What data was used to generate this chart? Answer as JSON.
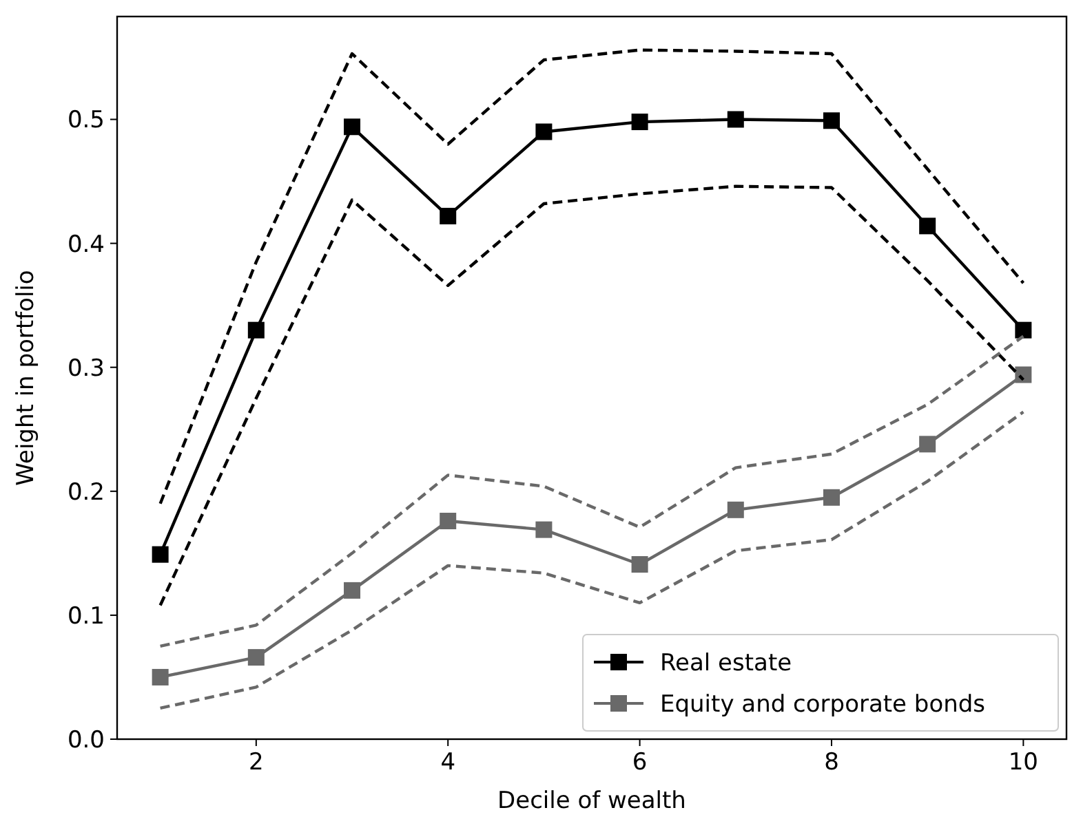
{
  "chart_data": {
    "type": "line",
    "xlabel": "Decile of wealth",
    "ylabel": "Weight in portfolio",
    "x": [
      1,
      2,
      3,
      4,
      5,
      6,
      7,
      8,
      9,
      10
    ],
    "series": [
      {
        "name": "Real estate",
        "color": "#000000",
        "values": [
          0.149,
          0.33,
          0.494,
          0.422,
          0.49,
          0.498,
          0.5,
          0.499,
          0.414,
          0.33
        ]
      },
      {
        "name": "Equity and corporate bonds",
        "color": "#696969",
        "values": [
          0.05,
          0.066,
          0.12,
          0.176,
          0.169,
          0.141,
          0.185,
          0.195,
          0.238,
          0.294
        ]
      },
      {
        "color": "#000000",
        "line_style": "dashed",
        "marker": "none",
        "values": [
          0.19,
          0.385,
          0.553,
          0.48,
          0.548,
          0.556,
          0.555,
          0.553,
          0.46,
          0.368
        ]
      },
      {
        "color": "#000000",
        "line_style": "dashed",
        "marker": "none",
        "values": [
          0.108,
          0.275,
          0.435,
          0.366,
          0.432,
          0.44,
          0.446,
          0.445,
          0.37,
          0.29
        ]
      },
      {
        "color": "#696969",
        "line_style": "dashed",
        "marker": "none",
        "values": [
          0.075,
          0.092,
          0.15,
          0.213,
          0.204,
          0.171,
          0.219,
          0.23,
          0.27,
          0.325
        ]
      },
      {
        "color": "#696969",
        "line_style": "dashed",
        "marker": "none",
        "values": [
          0.025,
          0.042,
          0.088,
          0.14,
          0.134,
          0.11,
          0.152,
          0.161,
          0.208,
          0.264
        ]
      }
    ],
    "xlim": [
      0.55,
      10.45
    ],
    "xticks": [
      2,
      4,
      6,
      8,
      10
    ],
    "ylim": [
      0,
      0.583
    ],
    "yticks": [
      {
        "value": 0,
        "label": "0.0"
      },
      0.1,
      0.2,
      0.3,
      0.4,
      0.5
    ],
    "marker": "square",
    "line_style": "solid",
    "grid": false,
    "legend": "bottom right"
  }
}
